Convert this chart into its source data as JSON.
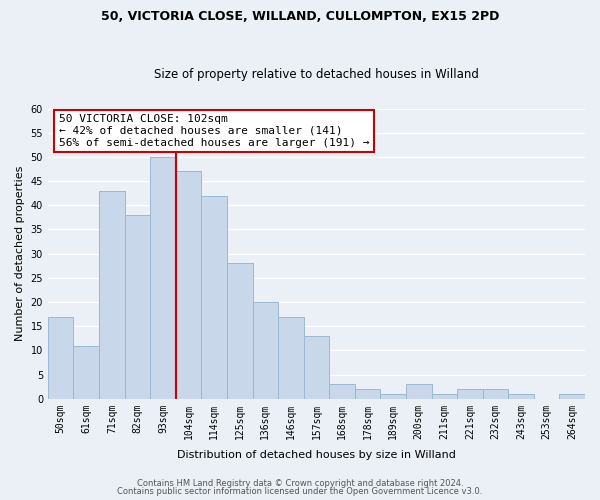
{
  "title": "50, VICTORIA CLOSE, WILLAND, CULLOMPTON, EX15 2PD",
  "subtitle": "Size of property relative to detached houses in Willand",
  "xlabel": "Distribution of detached houses by size in Willand",
  "ylabel": "Number of detached properties",
  "bin_labels": [
    "50sqm",
    "61sqm",
    "71sqm",
    "82sqm",
    "93sqm",
    "104sqm",
    "114sqm",
    "125sqm",
    "136sqm",
    "146sqm",
    "157sqm",
    "168sqm",
    "178sqm",
    "189sqm",
    "200sqm",
    "211sqm",
    "221sqm",
    "232sqm",
    "243sqm",
    "253sqm",
    "264sqm"
  ],
  "bar_heights": [
    17,
    11,
    43,
    38,
    50,
    47,
    42,
    28,
    20,
    17,
    13,
    3,
    2,
    1,
    3,
    1,
    2,
    2,
    1,
    0,
    1
  ],
  "bar_color": "#c8d8ea",
  "bar_edge_color": "#9ab8d0",
  "vline_x": 5,
  "vline_color": "#cc0000",
  "annotation_title": "50 VICTORIA CLOSE: 102sqm",
  "annotation_line1": "← 42% of detached houses are smaller (141)",
  "annotation_line2": "56% of semi-detached houses are larger (191) →",
  "annotation_box_facecolor": "#ffffff",
  "annotation_box_edgecolor": "#cc0000",
  "ylim": [
    0,
    60
  ],
  "yticks": [
    0,
    5,
    10,
    15,
    20,
    25,
    30,
    35,
    40,
    45,
    50,
    55,
    60
  ],
  "footer1": "Contains HM Land Registry data © Crown copyright and database right 2024.",
  "footer2": "Contains public sector information licensed under the Open Government Licence v3.0.",
  "fig_bg_color": "#eaf0f6",
  "plot_bg_color": "#eaf0f6",
  "grid_color": "#ffffff",
  "title_fontsize": 9,
  "subtitle_fontsize": 8.5,
  "xlabel_fontsize": 8,
  "ylabel_fontsize": 8,
  "tick_fontsize": 7,
  "annotation_fontsize": 8,
  "footer_fontsize": 6
}
